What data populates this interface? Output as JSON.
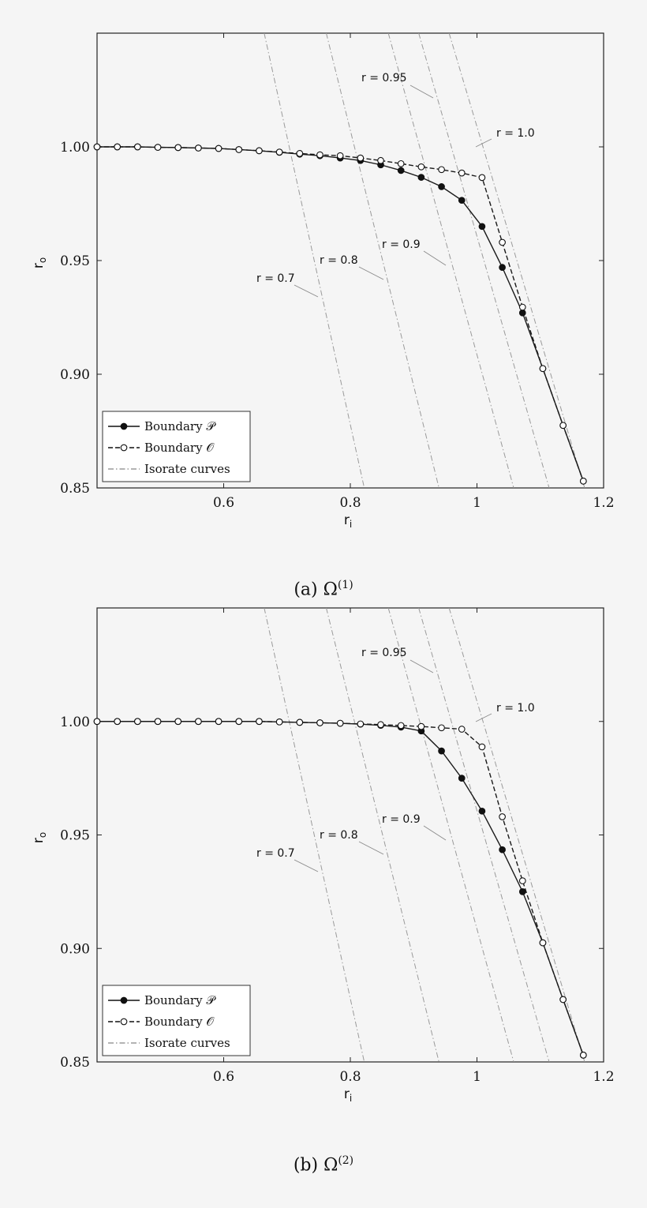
{
  "chart_data": [
    {
      "type": "line",
      "caption_prefix": "(a) Ω",
      "caption_sup": "(1)",
      "xlabel": "r",
      "xlabel_sub": "i",
      "ylabel": "r",
      "ylabel_sub": "o",
      "xlim": [
        0.4,
        1.2
      ],
      "ylim": [
        0.85,
        1.05
      ],
      "x_ticks": [
        0.6,
        0.8,
        1.0,
        1.2
      ],
      "x_tick_labels": [
        "0.6",
        "0.8",
        "1",
        "1.2"
      ],
      "y_ticks": [
        0.85,
        0.9,
        0.95,
        1.0
      ],
      "y_tick_labels": [
        "0.85",
        "0.90",
        "0.95",
        "1.00"
      ],
      "legend": {
        "placement": "bottom-left",
        "entries": [
          "Boundary 𝒫",
          "Boundary 𝒪",
          "Isorate curves"
        ]
      },
      "series": [
        {
          "name": "Boundary 𝒫",
          "style": "solid",
          "marker": "filled",
          "x": [
            0.4,
            0.432,
            0.464,
            0.496,
            0.528,
            0.56,
            0.592,
            0.624,
            0.656,
            0.688,
            0.72,
            0.752,
            0.784,
            0.816,
            0.848,
            0.88,
            0.912,
            0.944,
            0.976,
            1.008,
            1.04,
            1.072,
            1.104,
            1.136,
            1.168
          ],
          "y": [
            1.0,
            1.0,
            1.0,
            0.9998,
            0.9997,
            0.9995,
            0.9993,
            0.9988,
            0.9983,
            0.9976,
            0.9968,
            0.9961,
            0.9951,
            0.994,
            0.9921,
            0.9896,
            0.9866,
            0.9825,
            0.9765,
            0.965,
            0.947,
            0.927,
            0.9025,
            0.8775,
            0.853
          ]
        },
        {
          "name": "Boundary 𝒪",
          "style": "dashed",
          "marker": "open",
          "x": [
            0.4,
            0.432,
            0.464,
            0.496,
            0.528,
            0.56,
            0.592,
            0.624,
            0.656,
            0.688,
            0.72,
            0.752,
            0.784,
            0.816,
            0.848,
            0.88,
            0.912,
            0.944,
            0.976,
            1.008,
            1.04,
            1.072,
            1.104,
            1.136,
            1.168
          ],
          "y": [
            1.0,
            1.0,
            1.0,
            0.9998,
            0.9997,
            0.9995,
            0.9993,
            0.9988,
            0.9983,
            0.9977,
            0.9971,
            0.9965,
            0.9961,
            0.9951,
            0.994,
            0.9926,
            0.9912,
            0.99,
            0.9885,
            0.9865,
            0.958,
            0.9295,
            0.9025,
            0.8775,
            0.853
          ]
        }
      ],
      "isorates": [
        {
          "label": "r = 0.7",
          "x_at_top": 0.664,
          "x_at_bottom": 0.822
        },
        {
          "label": "r = 0.8",
          "x_at_top": 0.762,
          "x_at_bottom": 0.94
        },
        {
          "label": "r = 0.9",
          "x_at_top": 0.86,
          "x_at_bottom": 1.058
        },
        {
          "label": "r = 0.95",
          "x_at_top": 0.908,
          "x_at_bottom": 1.114
        },
        {
          "label": "r = 1.0",
          "x_at_top": 0.956,
          "x_at_bottom": 1.17
        }
      ]
    },
    {
      "type": "line",
      "caption_prefix": "(b) Ω",
      "caption_sup": "(2)",
      "xlabel": "r",
      "xlabel_sub": "i",
      "ylabel": "r",
      "ylabel_sub": "o",
      "xlim": [
        0.4,
        1.2
      ],
      "ylim": [
        0.85,
        1.05
      ],
      "x_ticks": [
        0.6,
        0.8,
        1.0,
        1.2
      ],
      "x_tick_labels": [
        "0.6",
        "0.8",
        "1",
        "1.2"
      ],
      "y_ticks": [
        0.85,
        0.9,
        0.95,
        1.0
      ],
      "y_tick_labels": [
        "0.85",
        "0.90",
        "0.95",
        "1.00"
      ],
      "legend": {
        "placement": "bottom-left",
        "entries": [
          "Boundary 𝒫",
          "Boundary 𝒪",
          "Isorate curves"
        ]
      },
      "series": [
        {
          "name": "Boundary 𝒫",
          "style": "solid",
          "marker": "filled",
          "x": [
            0.4,
            0.432,
            0.464,
            0.496,
            0.528,
            0.56,
            0.592,
            0.624,
            0.656,
            0.688,
            0.72,
            0.752,
            0.784,
            0.816,
            0.848,
            0.88,
            0.912,
            0.944,
            0.976,
            1.008,
            1.04,
            1.072,
            1.104,
            1.136,
            1.168
          ],
          "y": [
            1.0,
            1.0,
            1.0,
            1.0,
            1.0,
            1.0,
            1.0,
            1.0,
            1.0,
            0.9998,
            0.9996,
            0.9994,
            0.9992,
            0.9988,
            0.9983,
            0.9975,
            0.9958,
            0.987,
            0.975,
            0.9605,
            0.9435,
            0.925,
            0.9025,
            0.8775,
            0.853
          ]
        },
        {
          "name": "Boundary 𝒪",
          "style": "dashed",
          "marker": "open",
          "x": [
            0.4,
            0.432,
            0.464,
            0.496,
            0.528,
            0.56,
            0.592,
            0.624,
            0.656,
            0.688,
            0.72,
            0.752,
            0.784,
            0.816,
            0.848,
            0.88,
            0.912,
            0.944,
            0.976,
            1.008,
            1.04,
            1.072,
            1.104,
            1.136,
            1.168
          ],
          "y": [
            1.0,
            1.0,
            1.0,
            1.0,
            1.0,
            1.0,
            1.0,
            1.0,
            1.0,
            0.9998,
            0.9996,
            0.9994,
            0.9992,
            0.9989,
            0.9986,
            0.9982,
            0.9978,
            0.9972,
            0.9966,
            0.9888,
            0.958,
            0.9298,
            0.9025,
            0.8775,
            0.853
          ]
        }
      ],
      "isorates": [
        {
          "label": "r = 0.7",
          "x_at_top": 0.664,
          "x_at_bottom": 0.822
        },
        {
          "label": "r = 0.8",
          "x_at_top": 0.762,
          "x_at_bottom": 0.94
        },
        {
          "label": "r = 0.9",
          "x_at_top": 0.86,
          "x_at_bottom": 1.058
        },
        {
          "label": "r = 0.95",
          "x_at_top": 0.908,
          "x_at_bottom": 1.114
        },
        {
          "label": "r = 1.0",
          "x_at_top": 0.956,
          "x_at_bottom": 1.17
        }
      ]
    }
  ]
}
